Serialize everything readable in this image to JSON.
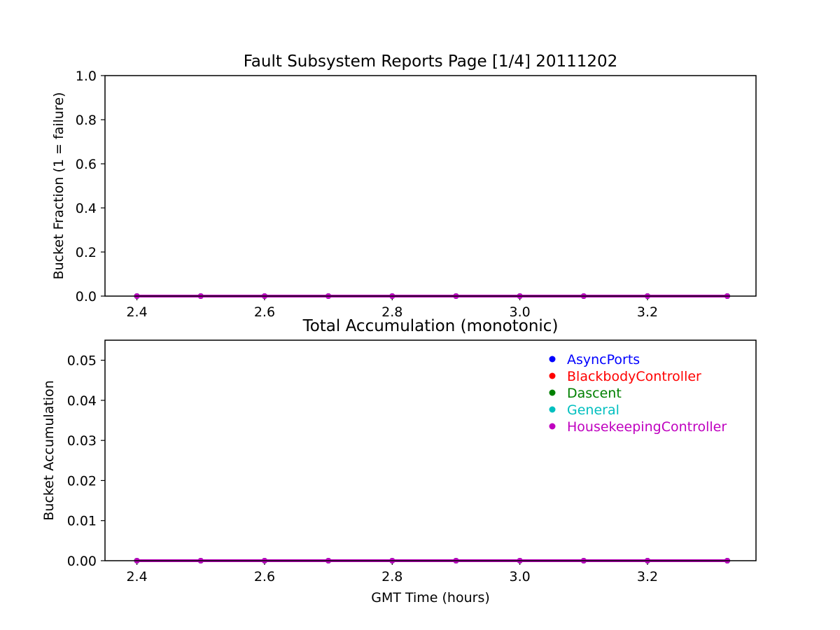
{
  "chart_data": [
    {
      "type": "scatter",
      "title": "Fault Subsystem Reports Page [1/4] 20111202",
      "xlabel": "",
      "ylabel": "Bucket Fraction (1 = failure)",
      "xlim": [
        2.35,
        3.37
      ],
      "ylim": [
        0.0,
        1.0
      ],
      "xticks": [
        2.4,
        2.6,
        2.8,
        3.0,
        3.2
      ],
      "xtick_labels": [
        "2.4",
        "2.6",
        "2.8",
        "3.0",
        "3.2"
      ],
      "yticks": [
        0.0,
        0.2,
        0.4,
        0.6,
        0.8,
        1.0
      ],
      "ytick_labels": [
        "0.0",
        "0.2",
        "0.4",
        "0.6",
        "0.8",
        "1.0"
      ],
      "grid": false,
      "x": [
        2.4,
        2.5,
        2.6,
        2.7,
        2.8,
        2.9,
        3.0,
        3.1,
        3.2,
        3.325
      ],
      "series": [
        {
          "name": "AsyncPorts",
          "color": "#0000ff",
          "values": [
            0,
            0,
            0,
            0,
            0,
            0,
            0,
            0,
            0,
            0
          ]
        },
        {
          "name": "BlackbodyController",
          "color": "#ff0000",
          "values": [
            0,
            0,
            0,
            0,
            0,
            0,
            0,
            0,
            0,
            0
          ]
        },
        {
          "name": "Dascent",
          "color": "#008000",
          "values": [
            0,
            0,
            0,
            0,
            0,
            0,
            0,
            0,
            0,
            0
          ]
        },
        {
          "name": "General",
          "color": "#00bfbf",
          "values": [
            0,
            0,
            0,
            0,
            0,
            0,
            0,
            0,
            0,
            0
          ]
        },
        {
          "name": "HousekeepingController",
          "color": "#bf00bf",
          "values": [
            0,
            0,
            0,
            0,
            0,
            0,
            0,
            0,
            0,
            0
          ]
        }
      ]
    },
    {
      "type": "scatter",
      "title": "Total Accumulation (monotonic)",
      "xlabel": "GMT Time (hours)",
      "ylabel": "Bucket Accumulation",
      "xlim": [
        2.35,
        3.37
      ],
      "ylim": [
        0.0,
        0.055
      ],
      "xticks": [
        2.4,
        2.6,
        2.8,
        3.0,
        3.2
      ],
      "xtick_labels": [
        "2.4",
        "2.6",
        "2.8",
        "3.0",
        "3.2"
      ],
      "yticks": [
        0.0,
        0.01,
        0.02,
        0.03,
        0.04,
        0.05
      ],
      "ytick_labels": [
        "0.00",
        "0.01",
        "0.02",
        "0.03",
        "0.04",
        "0.05"
      ],
      "grid": false,
      "legend": "top-right",
      "x": [
        2.4,
        2.5,
        2.6,
        2.7,
        2.8,
        2.9,
        3.0,
        3.1,
        3.2,
        3.325
      ],
      "series": [
        {
          "name": "AsyncPorts",
          "color": "#0000ff",
          "values": [
            0,
            0,
            0,
            0,
            0,
            0,
            0,
            0,
            0,
            0
          ]
        },
        {
          "name": "BlackbodyController",
          "color": "#ff0000",
          "values": [
            0,
            0,
            0,
            0,
            0,
            0,
            0,
            0,
            0,
            0
          ]
        },
        {
          "name": "Dascent",
          "color": "#008000",
          "values": [
            0,
            0,
            0,
            0,
            0,
            0,
            0,
            0,
            0,
            0
          ]
        },
        {
          "name": "General",
          "color": "#00bfbf",
          "values": [
            0,
            0,
            0,
            0,
            0,
            0,
            0,
            0,
            0,
            0
          ]
        },
        {
          "name": "HousekeepingController",
          "color": "#bf00bf",
          "values": [
            0,
            0,
            0,
            0,
            0,
            0,
            0,
            0,
            0,
            0
          ]
        }
      ]
    }
  ]
}
